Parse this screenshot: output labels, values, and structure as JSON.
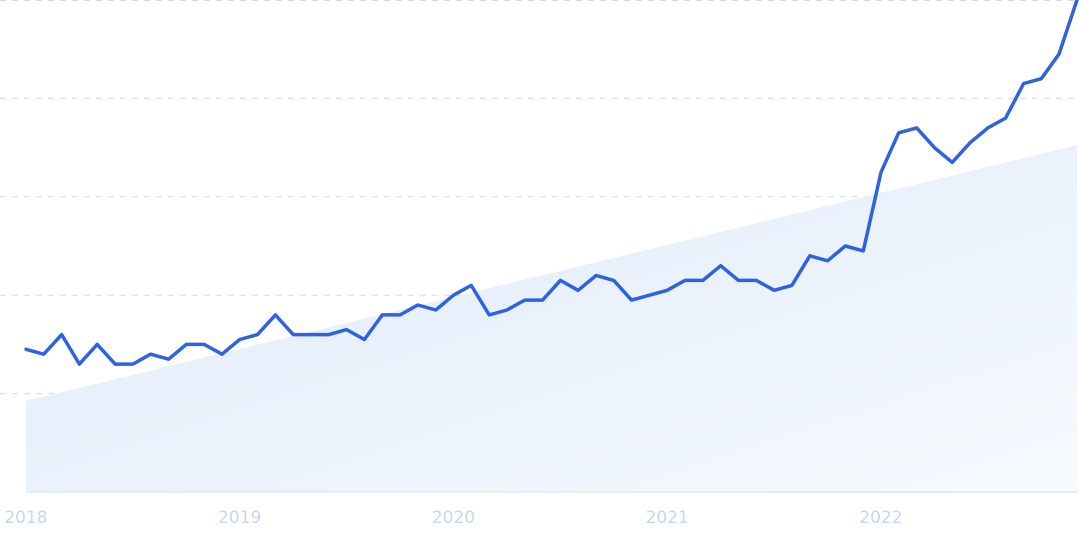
{
  "chart_data": {
    "type": "line",
    "title": "",
    "xlabel": "",
    "ylabel": "",
    "x_ticks": [
      "2018",
      "2019",
      "2020",
      "2021",
      "2022"
    ],
    "x_range": [
      2018.0,
      2022.917
    ],
    "ylim": [
      0,
      100
    ],
    "grid": true,
    "trend_area": {
      "start": 18.5,
      "end": 70.5,
      "color": "#e3eefb"
    },
    "series": [
      {
        "color": "#2f62e0",
        "x": [
          2018.0,
          2018.083,
          2018.167,
          2018.25,
          2018.333,
          2018.417,
          2018.5,
          2018.583,
          2018.667,
          2018.75,
          2018.833,
          2018.917,
          2019.0,
          2019.083,
          2019.167,
          2019.25,
          2019.333,
          2019.417,
          2019.5,
          2019.583,
          2019.667,
          2019.75,
          2019.833,
          2019.917,
          2020.0,
          2020.083,
          2020.167,
          2020.25,
          2020.333,
          2020.417,
          2020.5,
          2020.583,
          2020.667,
          2020.75,
          2020.833,
          2020.917,
          2021.0,
          2021.083,
          2021.167,
          2021.25,
          2021.333,
          2021.417,
          2021.5,
          2021.583,
          2021.667,
          2021.75,
          2021.833,
          2021.917,
          2022.0,
          2022.083,
          2022.167,
          2022.25,
          2022.333,
          2022.417,
          2022.5,
          2022.583,
          2022.667,
          2022.75,
          2022.833,
          2022.917
        ],
        "values": [
          29,
          28,
          32,
          26,
          30,
          26,
          26,
          28,
          27,
          30,
          30,
          28,
          31,
          32,
          36,
          32,
          32,
          32,
          33,
          31,
          36,
          36,
          38,
          37,
          40,
          42,
          36,
          37,
          39,
          39,
          43,
          41,
          44,
          43,
          39,
          40,
          41,
          43,
          43,
          46,
          43,
          43,
          41,
          42,
          48,
          47,
          50,
          49,
          65,
          73,
          74,
          70,
          67,
          71,
          74,
          76,
          83,
          84,
          89,
          100
        ]
      }
    ]
  }
}
